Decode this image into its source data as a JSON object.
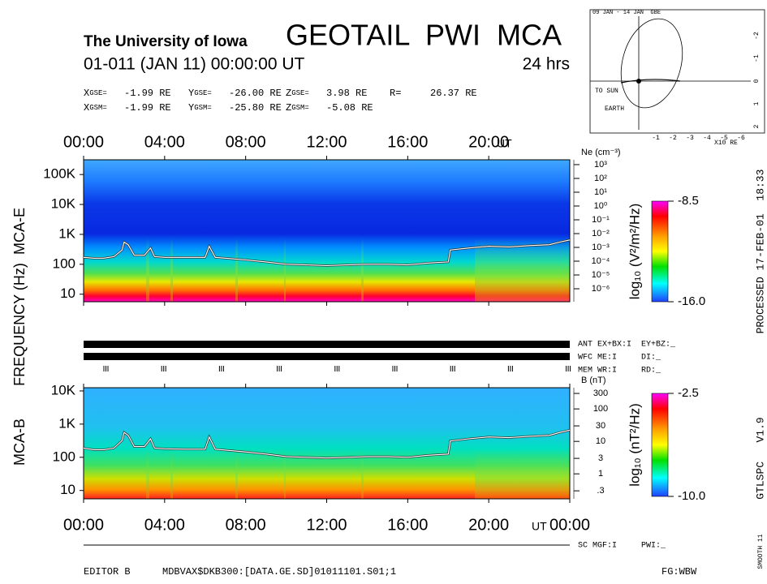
{
  "header": {
    "institution": "The University of Iowa",
    "title": "GEOTAIL  PWI  MCA",
    "date": "01-011 (JAN 11) 00:00:00 UT",
    "span": "24 hrs"
  },
  "coords": {
    "rows": [
      [
        {
          "name": "X",
          "sub": "GSE=",
          "value": "-1.99 RE"
        },
        {
          "name": "Y",
          "sub": "GSE=",
          "value": "-26.00 RE"
        },
        {
          "name": "Z",
          "sub": "GSE=",
          "value": "3.98 RE"
        },
        {
          "name": "R=",
          "value": "26.37 RE"
        }
      ],
      [
        {
          "name": "X",
          "sub": "GSM=",
          "value": "-1.99 RE"
        },
        {
          "name": "Y",
          "sub": "GSM=",
          "value": "-25.80 RE"
        },
        {
          "name": "Z",
          "sub": "GSM=",
          "value": "-5.08 RE"
        }
      ]
    ]
  },
  "orbit": {
    "title": "09 JAN - 14 JAN  GBE",
    "sun_label": "TO SUN",
    "earth_label": "EARTH",
    "xlabel": "X10 RE",
    "xticks": [
      -1,
      -2,
      -3,
      -4,
      -5,
      -6
    ],
    "yticks": [
      -2,
      -1,
      0,
      1,
      2
    ]
  },
  "frequency_label": "FREQUENCY (Hz)",
  "status": [
    "ANT EX+BX:I  EY+BZ:_",
    "WFC ME:I     DI:_",
    "MEM WR:I     RD:_"
  ],
  "chart_data": [
    {
      "type": "spectrogram",
      "label": "MCA-E",
      "log_y": true,
      "xlim": [
        0,
        24
      ],
      "xticks": [
        {
          "value": 0,
          "label": "00:00"
        },
        {
          "value": 4,
          "label": "04:00"
        },
        {
          "value": 8,
          "label": "08:00"
        },
        {
          "value": 12,
          "label": "12:00"
        },
        {
          "value": 16,
          "label": "16:00"
        },
        {
          "value": 20,
          "label": "20:00"
        }
      ],
      "x_unit": "UT",
      "ylim": [
        5.6,
        311000
      ],
      "yticks": [
        {
          "value": 100000,
          "label": "100K"
        },
        {
          "value": 10000,
          "label": "10K"
        },
        {
          "value": 1000,
          "label": "1K"
        },
        100,
        10
      ],
      "y2label": "Ne (cm⁻³)",
      "y2lim": [
        1.15e-07,
        2240
      ],
      "y2ticks": [
        {
          "value": 1000,
          "label": "10³"
        },
        {
          "value": 100,
          "label": "10²"
        },
        {
          "value": 10,
          "label": "10¹"
        },
        {
          "value": 1,
          "label": "10⁰"
        },
        {
          "value": 0.1,
          "label": "10⁻¹"
        },
        {
          "value": 0.01,
          "label": "10⁻²"
        },
        {
          "value": 0.001,
          "label": "10⁻³"
        },
        {
          "value": 0.0001,
          "label": "10⁻⁴"
        },
        {
          "value": 1e-05,
          "label": "10⁻⁵"
        },
        {
          "value": 1e-06,
          "label": "10⁻⁶"
        }
      ],
      "colorbar": {
        "label": "log₁₀ (V²/m²/Hz)",
        "zlim": [
          -16,
          -8.5
        ],
        "zticks": [
          {
            "value": -8.5,
            "label": "-8.5"
          },
          {
            "value": -16,
            "label": "-16.0"
          }
        ]
      },
      "line": {
        "color": "#ffffff",
        "x": [
          0,
          0.5,
          1,
          1.5,
          1.9,
          2.0,
          2.2,
          2.5,
          3,
          3.3,
          3.5,
          4,
          5,
          6,
          6.2,
          6.5,
          7,
          8,
          9,
          10,
          11,
          12,
          13,
          14,
          15,
          16,
          17,
          18,
          18.1,
          19,
          20,
          21,
          22,
          23,
          23.5,
          24
        ],
        "values": [
          170,
          160,
          160,
          180,
          300,
          550,
          450,
          200,
          200,
          350,
          180,
          170,
          170,
          170,
          400,
          170,
          160,
          140,
          120,
          100,
          95,
          90,
          95,
          100,
          100,
          95,
          110,
          120,
          300,
          350,
          400,
          380,
          420,
          450,
          550,
          650
        ]
      }
    },
    {
      "type": "spectrogram",
      "label": "MCA-B",
      "log_y": true,
      "xlim": [
        0,
        24
      ],
      "xticks": [
        {
          "value": 0,
          "label": "00:00"
        },
        {
          "value": 4,
          "label": "04:00"
        },
        {
          "value": 8,
          "label": "08:00"
        },
        {
          "value": 12,
          "label": "12:00"
        },
        {
          "value": 16,
          "label": "16:00"
        },
        {
          "value": 20,
          "label": "20:00"
        },
        {
          "value": 24,
          "label": "00:00"
        }
      ],
      "x_unit": "UT",
      "ylim": [
        5.6,
        12500
      ],
      "yticks": [
        {
          "value": 10000,
          "label": "10K"
        },
        {
          "value": 1000,
          "label": "1K"
        },
        100,
        10
      ],
      "y2label": "B (nT)",
      "y2lim": [
        0.17,
        450
      ],
      "y2ticks": [
        300,
        100,
        30,
        10,
        3,
        1,
        {
          "value": 0.3,
          "label": ".3"
        }
      ],
      "colorbar": {
        "label": "log₁₀ (nT²/Hz)",
        "zlim": [
          -10,
          -2.5
        ],
        "zticks": [
          {
            "value": -2.5,
            "label": "-2.5"
          },
          {
            "value": -10,
            "label": "-10.0"
          }
        ]
      },
      "line": {
        "color": "#ffffff",
        "x": [
          0,
          0.5,
          1,
          1.5,
          1.9,
          2.0,
          2.2,
          2.5,
          3,
          3.3,
          3.5,
          4,
          5,
          6,
          6.2,
          6.5,
          7,
          8,
          9,
          10,
          11,
          12,
          13,
          14,
          15,
          16,
          17,
          18,
          18.1,
          19,
          20,
          21,
          22,
          23,
          23.5,
          24
        ],
        "values": [
          190,
          170,
          170,
          190,
          320,
          560,
          460,
          210,
          210,
          360,
          190,
          180,
          175,
          175,
          410,
          175,
          165,
          145,
          125,
          105,
          100,
          95,
          100,
          105,
          105,
          100,
          115,
          125,
          310,
          360,
          410,
          390,
          430,
          460,
          560,
          660
        ]
      }
    }
  ],
  "footer": {
    "right_status": "SC MGF:I     PWI:_",
    "editor": "EDITOR B",
    "file": "MDBVAX$DKB300:[DATA.GE.SD]01011101.S01;1",
    "fg": "FG:WBW",
    "processed": "PROCESSED 17-FEB-01  18:33",
    "version": "GTLSPC   V1.9",
    "smooth": "SMOOTH 11"
  }
}
